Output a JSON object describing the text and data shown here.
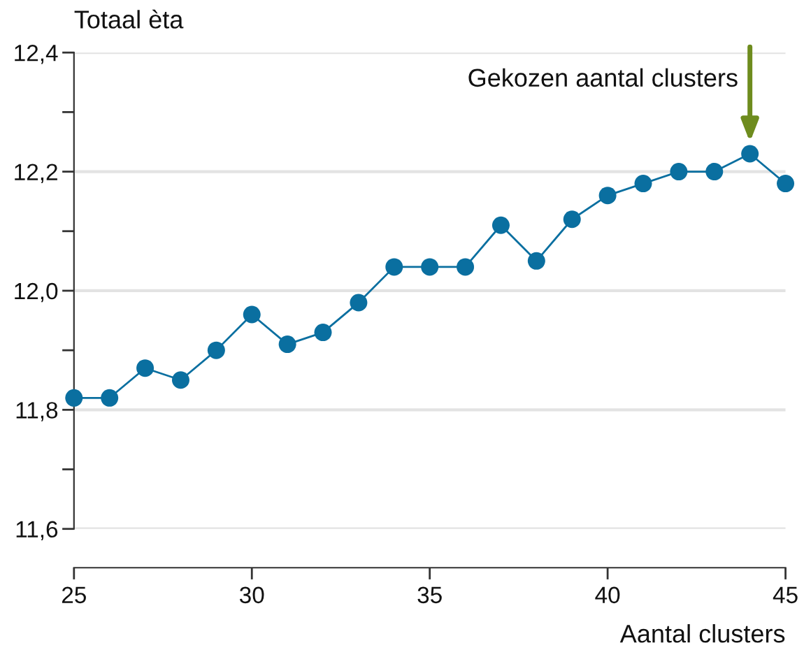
{
  "chart_data": {
    "type": "line",
    "ylabel": "Totaal èta",
    "xlabel": "Aantal clusters",
    "x": [
      25,
      26,
      27,
      28,
      29,
      30,
      31,
      32,
      33,
      34,
      35,
      36,
      37,
      38,
      39,
      40,
      41,
      42,
      43,
      44,
      45
    ],
    "series": [
      {
        "color": "#0a6fa0",
        "values": [
          11.82,
          11.82,
          11.87,
          11.85,
          11.9,
          11.96,
          11.91,
          11.93,
          11.98,
          12.04,
          12.04,
          12.04,
          12.11,
          12.05,
          12.12,
          12.16,
          12.18,
          12.2,
          12.2,
          12.23,
          12.18
        ]
      }
    ],
    "marker": "circle",
    "line_style": "solid",
    "grid": "y",
    "xlim": [
      25,
      45
    ],
    "xticks": [
      25,
      30,
      35,
      40,
      45
    ],
    "ylim": [
      11.6,
      12.4
    ],
    "yticks": [
      {
        "value": 11.6,
        "label": "11,6"
      },
      {
        "value": 11.7,
        "label": null
      },
      {
        "value": 11.8,
        "label": "11,8"
      },
      {
        "value": 11.9,
        "label": null
      },
      {
        "value": 12.0,
        "label": "12,0"
      },
      {
        "value": 12.1,
        "label": null
      },
      {
        "value": 12.2,
        "label": "12,2"
      },
      {
        "value": 12.3,
        "label": null
      },
      {
        "value": 12.4,
        "label": "12,4"
      }
    ],
    "annotations": [
      {
        "text": "Gekozen aantal clusters",
        "x": 44,
        "y": 12.23
      }
    ]
  }
}
